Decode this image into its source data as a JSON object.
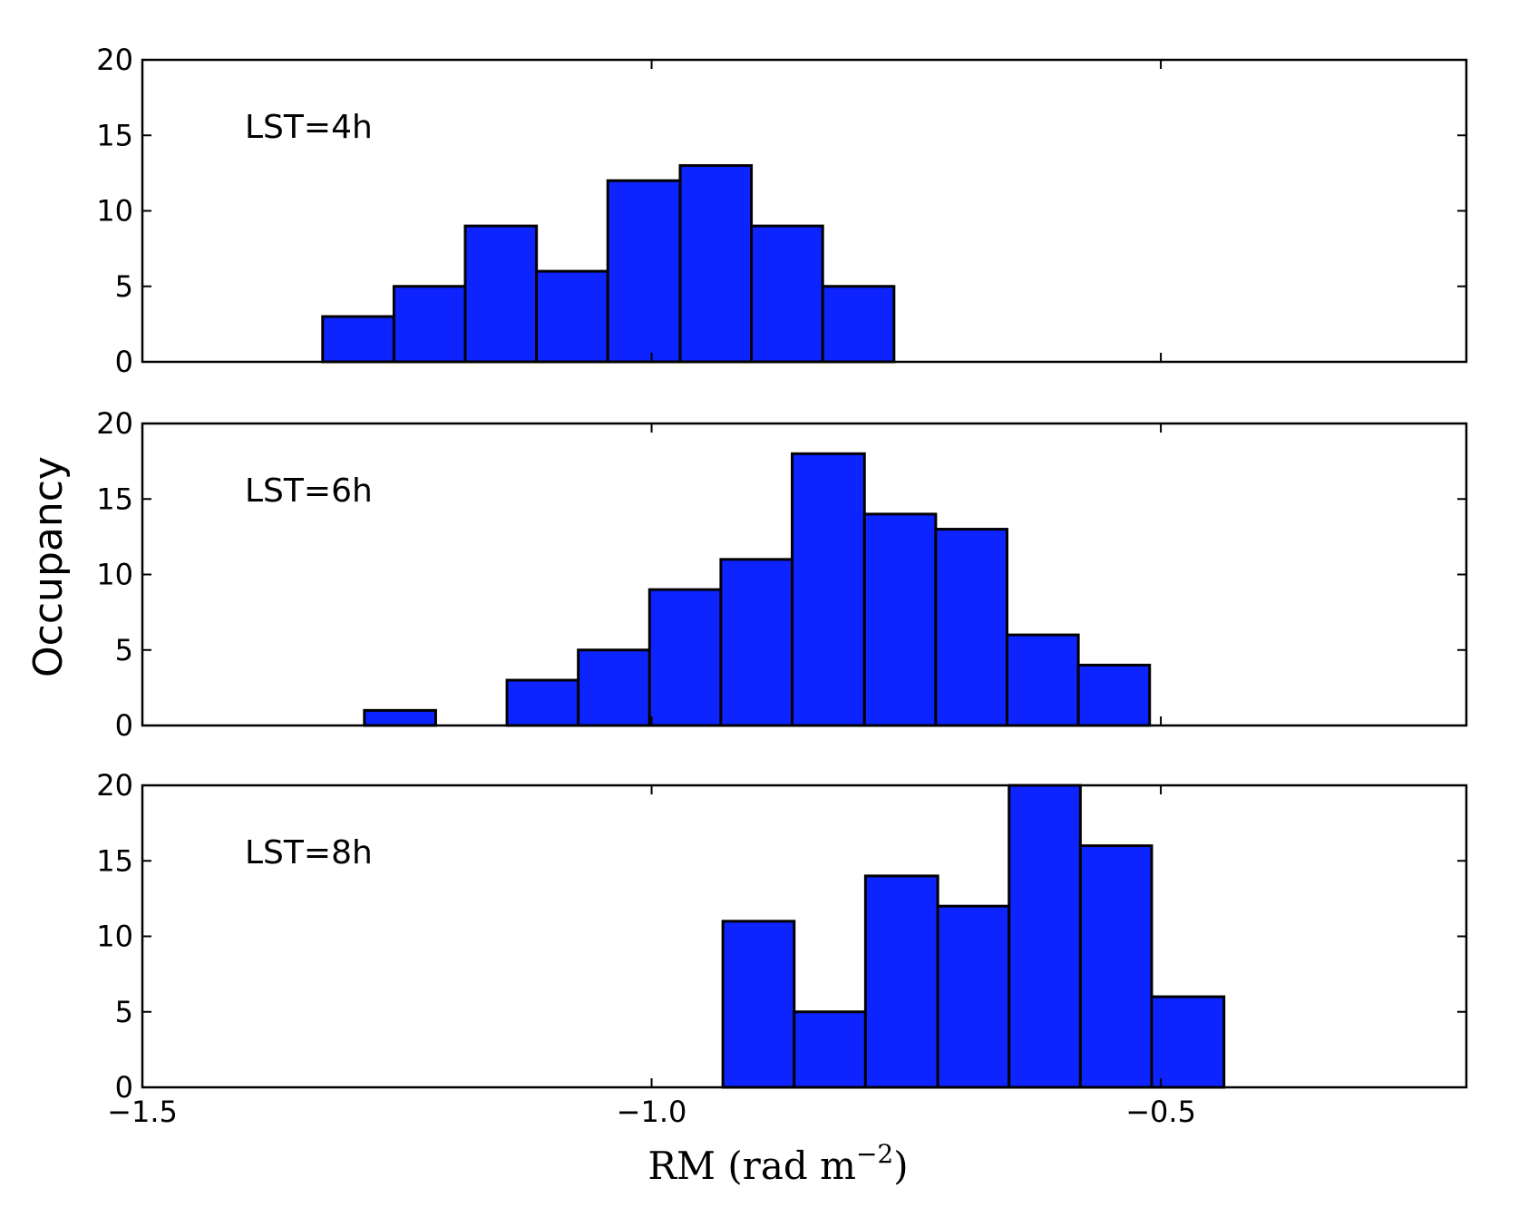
{
  "chart_data": {
    "type": "bar",
    "xlabel": "RM (rad m",
    "xlabel_exponent": "−2",
    "xlabel_close": ")",
    "ylabel": "Occupancy",
    "xlim": [
      -1.5,
      -0.2
    ],
    "ylim": [
      0,
      20
    ],
    "x_ticks": [
      {
        "value": -1.5,
        "label": "−1.5"
      },
      {
        "value": -1.0,
        "label": "−1.0"
      },
      {
        "value": -0.5,
        "label": "−0.5"
      }
    ],
    "y_ticks": [
      {
        "value": 0,
        "label": "0"
      },
      {
        "value": 5,
        "label": "5"
      },
      {
        "value": 10,
        "label": "10"
      },
      {
        "value": 15,
        "label": "15"
      },
      {
        "value": 20,
        "label": "20"
      }
    ],
    "bar_color": "#0d24ff",
    "edge_color": "#000000",
    "panels": [
      {
        "label": "LST=4h",
        "bins": [
          {
            "x0": -1.323,
            "x1": -1.253,
            "value": 3
          },
          {
            "x0": -1.253,
            "x1": -1.183,
            "value": 5
          },
          {
            "x0": -1.183,
            "x1": -1.113,
            "value": 9
          },
          {
            "x0": -1.113,
            "x1": -1.043,
            "value": 6
          },
          {
            "x0": -1.043,
            "x1": -0.972,
            "value": 12
          },
          {
            "x0": -0.972,
            "x1": -0.902,
            "value": 13
          },
          {
            "x0": -0.902,
            "x1": -0.832,
            "value": 9
          },
          {
            "x0": -0.832,
            "x1": -0.762,
            "value": 5
          }
        ]
      },
      {
        "label": "LST=6h",
        "bins": [
          {
            "x0": -1.282,
            "x1": -1.212,
            "value": 1
          },
          {
            "x0": -1.142,
            "x1": -1.072,
            "value": 3
          },
          {
            "x0": -1.072,
            "x1": -1.002,
            "value": 5
          },
          {
            "x0": -1.002,
            "x1": -0.932,
            "value": 9
          },
          {
            "x0": -0.932,
            "x1": -0.862,
            "value": 11
          },
          {
            "x0": -0.862,
            "x1": -0.791,
            "value": 18
          },
          {
            "x0": -0.791,
            "x1": -0.721,
            "value": 14
          },
          {
            "x0": -0.721,
            "x1": -0.651,
            "value": 13
          },
          {
            "x0": -0.651,
            "x1": -0.581,
            "value": 6
          },
          {
            "x0": -0.581,
            "x1": -0.511,
            "value": 4
          }
        ]
      },
      {
        "label": "LST=8h",
        "bins": [
          {
            "x0": -0.93,
            "x1": -0.86,
            "value": 11
          },
          {
            "x0": -0.86,
            "x1": -0.79,
            "value": 5
          },
          {
            "x0": -0.79,
            "x1": -0.719,
            "value": 14
          },
          {
            "x0": -0.719,
            "x1": -0.649,
            "value": 12
          },
          {
            "x0": -0.649,
            "x1": -0.579,
            "value": 20
          },
          {
            "x0": -0.579,
            "x1": -0.509,
            "value": 16
          },
          {
            "x0": -0.509,
            "x1": -0.438,
            "value": 6
          }
        ]
      }
    ]
  }
}
